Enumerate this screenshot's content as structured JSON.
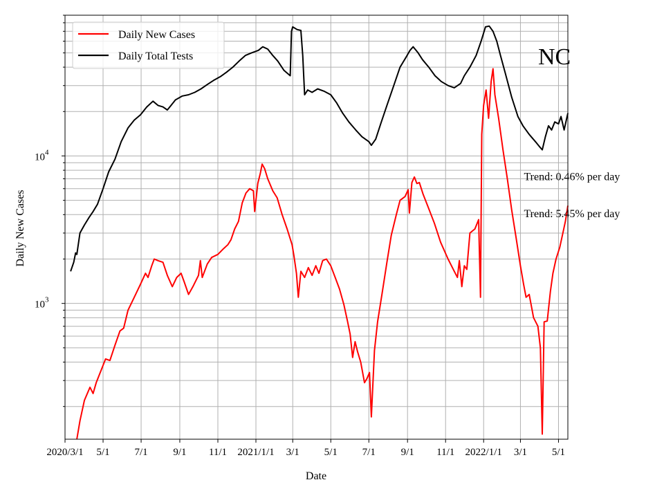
{
  "chart_data": {
    "type": "line",
    "title": "",
    "xlabel": "Date",
    "ylabel": "Daily New Cases",
    "y_scale": "log",
    "ylim": [
      120,
      90000
    ],
    "xlim": [
      "2020-03-01",
      "2022-05-16"
    ],
    "grid": "on (major and minor)",
    "legend_position": "top-left",
    "state_label": "NC",
    "x_ticks": [
      {
        "date": "2020-03-01",
        "label": "2020/3/1"
      },
      {
        "date": "2020-05-01",
        "label": "5/1"
      },
      {
        "date": "2020-07-01",
        "label": "7/1"
      },
      {
        "date": "2020-09-01",
        "label": "9/1"
      },
      {
        "date": "2020-11-01",
        "label": "11/1"
      },
      {
        "date": "2021-01-01",
        "label": "2021/1/1"
      },
      {
        "date": "2021-03-01",
        "label": "3/1"
      },
      {
        "date": "2021-05-01",
        "label": "5/1"
      },
      {
        "date": "2021-07-01",
        "label": "7/1"
      },
      {
        "date": "2021-09-01",
        "label": "9/1"
      },
      {
        "date": "2021-11-01",
        "label": "11/1"
      },
      {
        "date": "2022-01-01",
        "label": "2022/1/1"
      },
      {
        "date": "2022-03-01",
        "label": "3/1"
      },
      {
        "date": "2022-05-01",
        "label": "5/1"
      }
    ],
    "y_ticks": [
      {
        "value": 1000,
        "base": "10",
        "exp": "3"
      },
      {
        "value": 10000,
        "base": "10",
        "exp": "4"
      }
    ],
    "annotations": [
      {
        "text": "Trend: 0.46% per day",
        "date": "2022-03-01",
        "value": 7300
      },
      {
        "text": "Trend: 5.45% per day",
        "date": "2022-03-01",
        "value": 4100
      }
    ],
    "series": [
      {
        "name": "Daily New Cases",
        "color": "#ff0000",
        "points": [
          [
            "2020-03-20",
            120
          ],
          [
            "2020-03-25",
            160
          ],
          [
            "2020-04-01",
            220
          ],
          [
            "2020-04-10",
            270
          ],
          [
            "2020-04-15",
            245
          ],
          [
            "2020-04-20",
            290
          ],
          [
            "2020-05-01",
            380
          ],
          [
            "2020-05-05",
            420
          ],
          [
            "2020-05-12",
            410
          ],
          [
            "2020-05-20",
            520
          ],
          [
            "2020-05-28",
            650
          ],
          [
            "2020-06-03",
            680
          ],
          [
            "2020-06-10",
            900
          ],
          [
            "2020-06-20",
            1100
          ],
          [
            "2020-06-30",
            1350
          ],
          [
            "2020-07-08",
            1600
          ],
          [
            "2020-07-12",
            1500
          ],
          [
            "2020-07-18",
            1800
          ],
          [
            "2020-07-22",
            2000
          ],
          [
            "2020-07-28",
            1950
          ],
          [
            "2020-08-05",
            1900
          ],
          [
            "2020-08-12",
            1550
          ],
          [
            "2020-08-20",
            1300
          ],
          [
            "2020-08-27",
            1500
          ],
          [
            "2020-09-03",
            1600
          ],
          [
            "2020-09-08",
            1400
          ],
          [
            "2020-09-15",
            1150
          ],
          [
            "2020-09-22",
            1300
          ],
          [
            "2020-10-01",
            1550
          ],
          [
            "2020-10-04",
            1950
          ],
          [
            "2020-10-07",
            1500
          ],
          [
            "2020-10-15",
            1850
          ],
          [
            "2020-10-22",
            2050
          ],
          [
            "2020-11-01",
            2150
          ],
          [
            "2020-11-10",
            2350
          ],
          [
            "2020-11-17",
            2500
          ],
          [
            "2020-11-22",
            2700
          ],
          [
            "2020-11-28",
            3200
          ],
          [
            "2020-12-04",
            3600
          ],
          [
            "2020-12-10",
            4800
          ],
          [
            "2020-12-16",
            5600
          ],
          [
            "2020-12-22",
            6000
          ],
          [
            "2020-12-28",
            5800
          ],
          [
            "2020-12-30",
            4200
          ],
          [
            "2021-01-04",
            6500
          ],
          [
            "2021-01-08",
            7600
          ],
          [
            "2021-01-11",
            8800
          ],
          [
            "2021-01-15",
            8200
          ],
          [
            "2021-01-20",
            7000
          ],
          [
            "2021-01-28",
            5800
          ],
          [
            "2021-02-04",
            5200
          ],
          [
            "2021-02-12",
            4000
          ],
          [
            "2021-02-20",
            3200
          ],
          [
            "2021-02-28",
            2500
          ],
          [
            "2021-03-03",
            2100
          ],
          [
            "2021-03-07",
            1600
          ],
          [
            "2021-03-10",
            1100
          ],
          [
            "2021-03-14",
            1650
          ],
          [
            "2021-03-20",
            1500
          ],
          [
            "2021-03-26",
            1750
          ],
          [
            "2021-04-01",
            1550
          ],
          [
            "2021-04-07",
            1800
          ],
          [
            "2021-04-12",
            1600
          ],
          [
            "2021-04-18",
            1950
          ],
          [
            "2021-04-24",
            2000
          ],
          [
            "2021-05-01",
            1800
          ],
          [
            "2021-05-08",
            1500
          ],
          [
            "2021-05-15",
            1250
          ],
          [
            "2021-05-22",
            980
          ],
          [
            "2021-05-28",
            750
          ],
          [
            "2021-06-01",
            620
          ],
          [
            "2021-06-05",
            430
          ],
          [
            "2021-06-09",
            550
          ],
          [
            "2021-06-13",
            470
          ],
          [
            "2021-06-18",
            400
          ],
          [
            "2021-06-24",
            290
          ],
          [
            "2021-06-28",
            310
          ],
          [
            "2021-07-02",
            340
          ],
          [
            "2021-07-05",
            170
          ],
          [
            "2021-07-10",
            480
          ],
          [
            "2021-07-15",
            750
          ],
          [
            "2021-07-22",
            1150
          ],
          [
            "2021-07-30",
            1900
          ],
          [
            "2021-08-06",
            2900
          ],
          [
            "2021-08-14",
            4000
          ],
          [
            "2021-08-20",
            5000
          ],
          [
            "2021-08-28",
            5300
          ],
          [
            "2021-09-02",
            5900
          ],
          [
            "2021-09-04",
            4100
          ],
          [
            "2021-09-08",
            6600
          ],
          [
            "2021-09-12",
            7200
          ],
          [
            "2021-09-16",
            6500
          ],
          [
            "2021-09-20",
            6600
          ],
          [
            "2021-09-26",
            5500
          ],
          [
            "2021-10-04",
            4500
          ],
          [
            "2021-10-14",
            3500
          ],
          [
            "2021-10-24",
            2600
          ],
          [
            "2021-11-05",
            2000
          ],
          [
            "2021-11-15",
            1650
          ],
          [
            "2021-11-20",
            1500
          ],
          [
            "2021-11-23",
            1950
          ],
          [
            "2021-11-27",
            1300
          ],
          [
            "2021-12-01",
            1800
          ],
          [
            "2021-12-05",
            1700
          ],
          [
            "2021-12-10",
            3000
          ],
          [
            "2021-12-18",
            3200
          ],
          [
            "2021-12-24",
            3700
          ],
          [
            "2021-12-27",
            1100
          ],
          [
            "2021-12-29",
            14000
          ],
          [
            "2022-01-01",
            22000
          ],
          [
            "2022-01-05",
            28000
          ],
          [
            "2022-01-09",
            18000
          ],
          [
            "2022-01-13",
            32000
          ],
          [
            "2022-01-16",
            39000
          ],
          [
            "2022-01-19",
            26000
          ],
          [
            "2022-01-25",
            18000
          ],
          [
            "2022-02-01",
            11000
          ],
          [
            "2022-02-08",
            7000
          ],
          [
            "2022-02-15",
            4300
          ],
          [
            "2022-02-22",
            2800
          ],
          [
            "2022-03-01",
            1800
          ],
          [
            "2022-03-06",
            1350
          ],
          [
            "2022-03-10",
            1100
          ],
          [
            "2022-03-15",
            1150
          ],
          [
            "2022-03-22",
            800
          ],
          [
            "2022-03-29",
            700
          ],
          [
            "2022-04-02",
            500
          ],
          [
            "2022-04-05",
            130
          ],
          [
            "2022-04-08",
            750
          ],
          [
            "2022-04-13",
            760
          ],
          [
            "2022-04-18",
            1200
          ],
          [
            "2022-04-22",
            1600
          ],
          [
            "2022-04-27",
            2000
          ],
          [
            "2022-05-03",
            2400
          ],
          [
            "2022-05-08",
            3000
          ],
          [
            "2022-05-12",
            3600
          ],
          [
            "2022-05-16",
            4600
          ]
        ]
      },
      {
        "name": "Daily Total Tests",
        "color": "#000000",
        "points": [
          [
            "2020-03-10",
            1650
          ],
          [
            "2020-03-15",
            1900
          ],
          [
            "2020-03-18",
            2200
          ],
          [
            "2020-03-20",
            2150
          ],
          [
            "2020-03-25",
            3000
          ],
          [
            "2020-04-01",
            3400
          ],
          [
            "2020-04-08",
            3800
          ],
          [
            "2020-04-15",
            4200
          ],
          [
            "2020-04-22",
            4700
          ],
          [
            "2020-05-01",
            6000
          ],
          [
            "2020-05-10",
            7800
          ],
          [
            "2020-05-20",
            9500
          ],
          [
            "2020-05-30",
            12500
          ],
          [
            "2020-06-10",
            15500
          ],
          [
            "2020-06-20",
            17500
          ],
          [
            "2020-06-30",
            19000
          ],
          [
            "2020-07-10",
            21500
          ],
          [
            "2020-07-20",
            23500
          ],
          [
            "2020-07-28",
            22000
          ],
          [
            "2020-08-05",
            21500
          ],
          [
            "2020-08-12",
            20500
          ],
          [
            "2020-08-18",
            22000
          ],
          [
            "2020-08-25",
            24000
          ],
          [
            "2020-09-05",
            25500
          ],
          [
            "2020-09-15",
            26000
          ],
          [
            "2020-09-25",
            27000
          ],
          [
            "2020-10-05",
            28500
          ],
          [
            "2020-10-15",
            30500
          ],
          [
            "2020-10-25",
            32500
          ],
          [
            "2020-11-05",
            34500
          ],
          [
            "2020-11-15",
            37000
          ],
          [
            "2020-11-25",
            40000
          ],
          [
            "2020-12-05",
            44000
          ],
          [
            "2020-12-15",
            48000
          ],
          [
            "2020-12-25",
            50000
          ],
          [
            "2021-01-05",
            52000
          ],
          [
            "2021-01-12",
            55000
          ],
          [
            "2021-01-20",
            53000
          ],
          [
            "2021-01-28",
            48000
          ],
          [
            "2021-02-05",
            44000
          ],
          [
            "2021-02-15",
            38000
          ],
          [
            "2021-02-25",
            35000
          ],
          [
            "2021-02-27",
            70000
          ],
          [
            "2021-03-01",
            75000
          ],
          [
            "2021-03-08",
            72000
          ],
          [
            "2021-03-14",
            71000
          ],
          [
            "2021-03-17",
            48000
          ],
          [
            "2021-03-20",
            26000
          ],
          [
            "2021-03-25",
            28000
          ],
          [
            "2021-04-01",
            27000
          ],
          [
            "2021-04-10",
            28500
          ],
          [
            "2021-04-20",
            27500
          ],
          [
            "2021-05-01",
            26000
          ],
          [
            "2021-05-10",
            23000
          ],
          [
            "2021-05-20",
            19500
          ],
          [
            "2021-05-30",
            17000
          ],
          [
            "2021-06-10",
            15000
          ],
          [
            "2021-06-20",
            13500
          ],
          [
            "2021-07-01",
            12500
          ],
          [
            "2021-07-05",
            11800
          ],
          [
            "2021-07-12",
            13000
          ],
          [
            "2021-07-20",
            16500
          ],
          [
            "2021-07-30",
            22000
          ],
          [
            "2021-08-10",
            30000
          ],
          [
            "2021-08-20",
            40000
          ],
          [
            "2021-08-30",
            47000
          ],
          [
            "2021-09-05",
            52000
          ],
          [
            "2021-09-10",
            55000
          ],
          [
            "2021-09-18",
            50000
          ],
          [
            "2021-09-25",
            45000
          ],
          [
            "2021-10-05",
            40000
          ],
          [
            "2021-10-15",
            35000
          ],
          [
            "2021-10-25",
            32000
          ],
          [
            "2021-11-05",
            30000
          ],
          [
            "2021-11-15",
            29000
          ],
          [
            "2021-11-25",
            31000
          ],
          [
            "2021-12-01",
            35000
          ],
          [
            "2021-12-10",
            40000
          ],
          [
            "2021-12-20",
            48000
          ],
          [
            "2021-12-28",
            60000
          ],
          [
            "2022-01-04",
            75000
          ],
          [
            "2022-01-10",
            76000
          ],
          [
            "2022-01-16",
            70000
          ],
          [
            "2022-01-22",
            60000
          ],
          [
            "2022-01-28",
            48000
          ],
          [
            "2022-02-05",
            36000
          ],
          [
            "2022-02-15",
            25000
          ],
          [
            "2022-02-25",
            18500
          ],
          [
            "2022-03-05",
            16000
          ],
          [
            "2022-03-15",
            14000
          ],
          [
            "2022-03-25",
            12500
          ],
          [
            "2022-04-01",
            11500
          ],
          [
            "2022-04-05",
            11000
          ],
          [
            "2022-04-10",
            13500
          ],
          [
            "2022-04-15",
            16000
          ],
          [
            "2022-04-20",
            15000
          ],
          [
            "2022-04-25",
            17000
          ],
          [
            "2022-05-01",
            16500
          ],
          [
            "2022-05-05",
            18500
          ],
          [
            "2022-05-10",
            15000
          ],
          [
            "2022-05-16",
            19500
          ]
        ]
      }
    ]
  }
}
